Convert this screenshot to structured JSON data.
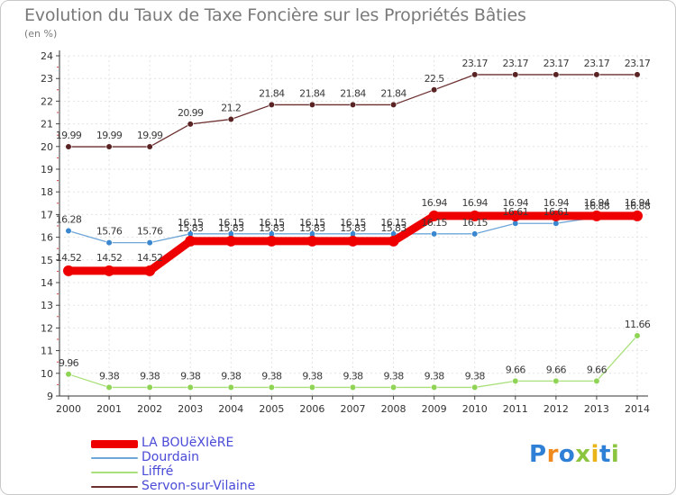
{
  "title": "Evolution du Taux de Taxe Foncière sur les Propriétés Bâties",
  "unit": "(en %)",
  "logo": {
    "text": "Proxiti",
    "colors": [
      "#2e7fd6",
      "#f08a1c",
      "#2e7fd6",
      "#8bc53f",
      "#e8b417",
      "#2e7fd6",
      "#8bc53f"
    ]
  },
  "chart_data": {
    "type": "line",
    "title": "Evolution du Taux de Taxe Foncière sur les Propriétés Bâties",
    "ylabel": "(en %)",
    "xlabel": "",
    "x": [
      "2000",
      "2001",
      "2002",
      "2003",
      "2004",
      "2005",
      "2006",
      "2007",
      "2008",
      "2009",
      "2010",
      "2011",
      "2012",
      "2013",
      "2014"
    ],
    "ylim": [
      9,
      24
    ],
    "yticks": [
      9,
      10,
      11,
      12,
      13,
      14,
      15,
      16,
      17,
      18,
      19,
      20,
      21,
      22,
      23,
      24
    ],
    "legend_position": "bottom-left",
    "series": [
      {
        "name": "LA BOUëXIèRE",
        "color": "#ee0000",
        "emphasis": "thick",
        "values": [
          14.52,
          14.52,
          14.52,
          15.83,
          15.83,
          15.83,
          15.83,
          15.83,
          15.83,
          16.94,
          16.94,
          16.94,
          16.94,
          16.94,
          16.94
        ],
        "labels": [
          "14.52",
          "14.52",
          "14.52",
          "15.83",
          "15.83",
          "15.83",
          "15.83",
          "15.83",
          "15.83",
          "16.94",
          "16.94",
          "16.94",
          "16.94",
          "16.94",
          "16.94"
        ]
      },
      {
        "name": "Dourdain",
        "color": "#6fa6d8",
        "marker_color": "#3b87cf",
        "values": [
          16.28,
          15.76,
          15.76,
          16.15,
          16.15,
          16.15,
          16.15,
          16.15,
          16.15,
          16.15,
          16.15,
          16.61,
          16.61,
          16.88,
          16.88
        ],
        "labels": [
          "16.28",
          "15.76",
          "15.76",
          "16.15",
          "16.15",
          "16.15",
          "16.15",
          "16.15",
          "16.15",
          "16.15",
          "16.15",
          "16.61",
          "16.61",
          "16.88",
          "16.88"
        ]
      },
      {
        "name": "Liffré",
        "color": "#a9e07c",
        "marker_color": "#8fd454",
        "values": [
          9.96,
          9.38,
          9.38,
          9.38,
          9.38,
          9.38,
          9.38,
          9.38,
          9.38,
          9.38,
          9.38,
          9.66,
          9.66,
          9.66,
          11.66
        ],
        "labels": [
          "9.96",
          "9.38",
          "9.38",
          "9.38",
          "9.38",
          "9.38",
          "9.38",
          "9.38",
          "9.38",
          "9.38",
          "9.38",
          "9.66",
          "9.66",
          "9.66",
          "11.66"
        ]
      },
      {
        "name": "Servon-sur-Vilaine",
        "color": "#6b2f2f",
        "marker_color": "#5a2323",
        "values": [
          19.99,
          19.99,
          19.99,
          20.99,
          21.2,
          21.84,
          21.84,
          21.84,
          21.84,
          22.5,
          23.17,
          23.17,
          23.17,
          23.17,
          23.17
        ],
        "labels": [
          "19.99",
          "19.99",
          "19.99",
          "20.99",
          "21.2",
          "21.84",
          "21.84",
          "21.84",
          "21.84",
          "22.5",
          "23.17",
          "23.17",
          "23.17",
          "23.17",
          "23.17"
        ]
      }
    ]
  }
}
